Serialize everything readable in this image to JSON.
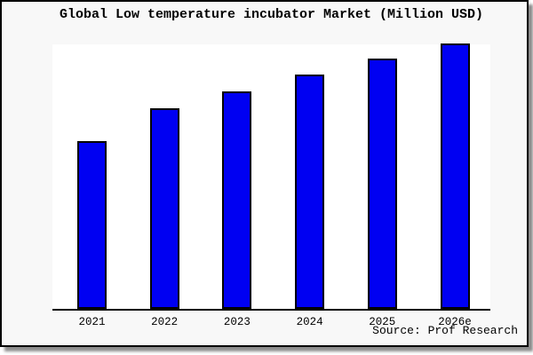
{
  "window": {
    "background_color": "#f8f8f8",
    "plot_background_color": "#ffffff",
    "border_color": "#000000",
    "shadow_color": "#999999"
  },
  "source": "Source: Prof Research",
  "chart_data": {
    "type": "bar",
    "title": "Global Low temperature incubator Market (Million USD)",
    "categories": [
      "2021",
      "2022",
      "2023",
      "2024",
      "2025",
      "2026e"
    ],
    "values": [
      62.9,
      75.3,
      81.6,
      88.0,
      94.0,
      99.7
    ],
    "xlabel": "",
    "ylabel": "",
    "ylim": [
      0,
      100
    ],
    "y_axis_labeled": false,
    "grid": false,
    "legend_position": "none",
    "bar_color": "#0000f2",
    "bar_edge_color": "#000000"
  }
}
